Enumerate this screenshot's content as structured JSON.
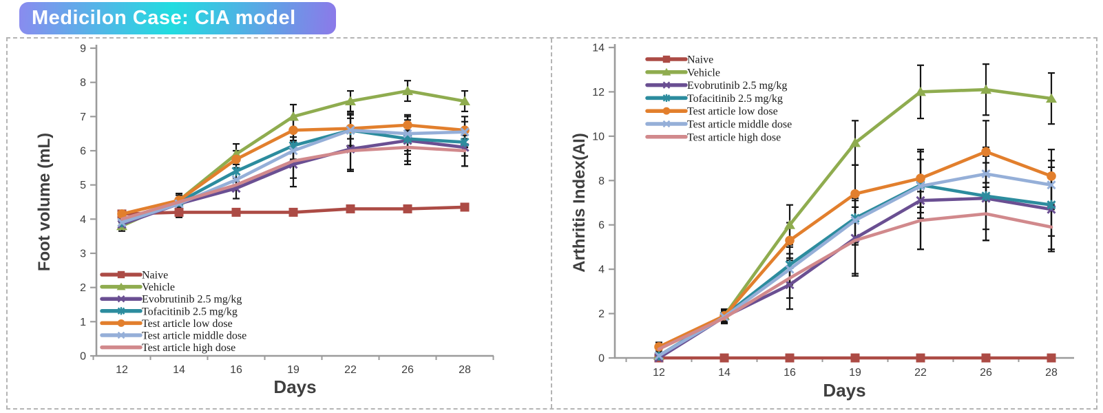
{
  "badge": {
    "label": "Medicilon Case: CIA model",
    "gradient_left": "#8A8BEF",
    "gradient_mid": "#21DCE0",
    "gradient_right": "#8C79E9"
  },
  "chart_data": [
    {
      "type": "line",
      "title": "",
      "xlabel": "Days",
      "ylabel": "Foot volume (mL)",
      "categories": [
        "12",
        "14",
        "16",
        "19",
        "22",
        "26",
        "28"
      ],
      "ylim": [
        0,
        9
      ],
      "ytick_step": 1,
      "grid": false,
      "legend_position": "bottom-left",
      "axis_color": "#9B9B9B",
      "error_bar_color": "#141414",
      "series": [
        {
          "name": "Naive",
          "color": "#AC4B45",
          "marker": "square",
          "values": [
            4.15,
            4.2,
            4.2,
            4.2,
            4.3,
            4.3,
            4.35
          ],
          "errors": [
            0.1,
            0.15,
            0,
            0,
            0,
            0,
            0
          ]
        },
        {
          "name": "Vehicle",
          "color": "#8FAC4F",
          "marker": "triangle",
          "values": [
            3.8,
            4.55,
            5.9,
            7.0,
            7.45,
            7.75,
            7.45
          ],
          "errors": [
            0.15,
            0.2,
            0.3,
            0.35,
            0.3,
            0.3,
            0.3
          ]
        },
        {
          "name": "Evobrutinib 2.5 mg/kg",
          "color": "#6A4F92",
          "marker": "x",
          "values": [
            3.85,
            4.45,
            4.9,
            5.6,
            6.05,
            6.3,
            6.1
          ],
          "errors": [
            0,
            0,
            0.3,
            0.65,
            0.65,
            0.6,
            0.55
          ]
        },
        {
          "name": "Tofacitinib 2.5 mg/kg",
          "color": "#2C8C9E",
          "marker": "star",
          "values": [
            3.9,
            4.5,
            5.4,
            6.15,
            6.6,
            6.35,
            6.25
          ],
          "errors": [
            0.12,
            0,
            0.3,
            0.4,
            0.45,
            0.45,
            0.4
          ]
        },
        {
          "name": "Test article low dose",
          "color": "#E27F2D",
          "marker": "circle",
          "values": [
            4.15,
            4.55,
            5.75,
            6.6,
            6.65,
            6.75,
            6.6
          ],
          "errors": [
            0.1,
            0.15,
            0.25,
            0.3,
            0.3,
            0.3,
            0.25
          ]
        },
        {
          "name": "Test article middle dose",
          "color": "#95AFD8",
          "marker": "x",
          "values": [
            3.9,
            4.45,
            5.15,
            6.0,
            6.6,
            6.5,
            6.55
          ],
          "errors": [
            0.1,
            0,
            0,
            0.4,
            0.5,
            0.5,
            0.45
          ]
        },
        {
          "name": "Test article high dose",
          "color": "#D1898C",
          "marker": "none",
          "values": [
            4.0,
            4.5,
            5.0,
            5.7,
            6.0,
            6.1,
            6.0
          ],
          "errors": [
            0.1,
            0,
            0,
            0.5,
            0.55,
            0.5,
            0.45
          ]
        }
      ]
    },
    {
      "type": "line",
      "title": "",
      "xlabel": "Days",
      "ylabel": "Arthritis Index(AI)",
      "categories": [
        "12",
        "14",
        "16",
        "19",
        "22",
        "26",
        "28"
      ],
      "ylim": [
        0,
        14
      ],
      "ytick_step": 2,
      "grid": false,
      "legend_position": "top-left",
      "axis_color": "#9B9B9B",
      "error_bar_color": "#141414",
      "series": [
        {
          "name": "Naive",
          "color": "#AC4B45",
          "marker": "square",
          "values": [
            0,
            0,
            0,
            0,
            0,
            0,
            0
          ],
          "errors": [
            0.15,
            0,
            0,
            0,
            0,
            0,
            0
          ]
        },
        {
          "name": "Vehicle",
          "color": "#8FAC4F",
          "marker": "triangle",
          "values": [
            0.1,
            1.9,
            6.0,
            9.7,
            12.0,
            12.1,
            11.7
          ],
          "errors": [
            0.1,
            0.25,
            0.9,
            1.0,
            1.2,
            1.15,
            1.15
          ]
        },
        {
          "name": "Evobrutinib 2.5 mg/kg",
          "color": "#6A4F92",
          "marker": "x",
          "values": [
            0,
            1.85,
            3.3,
            5.4,
            7.1,
            7.2,
            6.7
          ],
          "errors": [
            0.1,
            0.3,
            1.1,
            1.7,
            2.2,
            1.9,
            1.9
          ]
        },
        {
          "name": "Tofacitinib 2.5 mg/kg",
          "color": "#2C8C9E",
          "marker": "star",
          "values": [
            0.1,
            1.9,
            4.2,
            6.3,
            7.8,
            7.3,
            6.9
          ],
          "errors": [
            0.1,
            0.2,
            0.8,
            1.2,
            1.5,
            1.5,
            1.4
          ]
        },
        {
          "name": "Test article low dose",
          "color": "#E27F2D",
          "marker": "circle",
          "values": [
            0.5,
            1.9,
            5.3,
            7.4,
            8.1,
            9.3,
            8.2
          ],
          "errors": [
            0.2,
            0.3,
            0.8,
            1.3,
            1.3,
            1.4,
            1.2
          ]
        },
        {
          "name": "Test article middle dose",
          "color": "#95AFD8",
          "marker": "x",
          "values": [
            0.1,
            1.85,
            4.0,
            6.2,
            7.75,
            8.3,
            7.8
          ],
          "errors": [
            0.1,
            0.2,
            0.7,
            1.0,
            1.2,
            1.2,
            1.1
          ]
        },
        {
          "name": "Test article high dose",
          "color": "#D1898C",
          "marker": "none",
          "values": [
            0.4,
            1.8,
            3.6,
            5.3,
            6.2,
            6.5,
            5.9
          ],
          "errors": [
            0.15,
            0.2,
            0.9,
            1.5,
            1.3,
            1.2,
            1.0
          ]
        }
      ]
    }
  ]
}
